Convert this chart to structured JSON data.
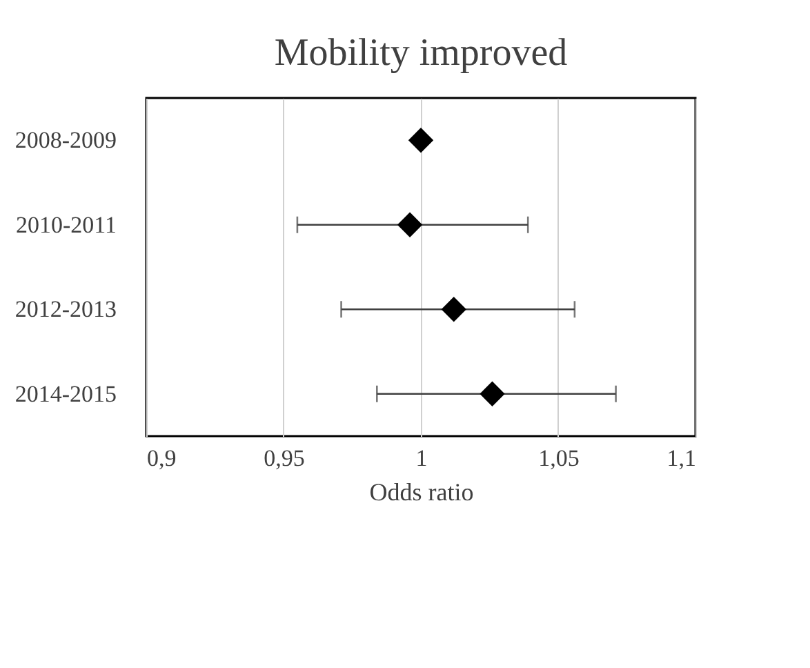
{
  "chart_data": {
    "type": "scatter",
    "orientation": "horizontal",
    "title": "Mobility improved",
    "xlabel": "Odds ratio",
    "categories": [
      "2008-2009",
      "2010-2011",
      "2012-2013",
      "2014-2015"
    ],
    "series": [
      {
        "color": "#000000",
        "values": [
          1.0,
          0.996,
          1.012,
          1.026
        ],
        "errors": [
          null,
          [
            0.955,
            1.039
          ],
          [
            0.971,
            1.056
          ],
          [
            0.984,
            1.071
          ]
        ]
      }
    ],
    "xlim": [
      0.9,
      1.1
    ],
    "xticks": [
      {
        "value": 0.9,
        "label": "0,9"
      },
      {
        "value": 0.95,
        "label": "0,95"
      },
      {
        "value": 1,
        "label": "1"
      },
      {
        "value": 1.05,
        "label": "1,05"
      },
      {
        "value": 1.1,
        "label": "1,1"
      }
    ],
    "grid": "x",
    "marker": "diamond"
  }
}
